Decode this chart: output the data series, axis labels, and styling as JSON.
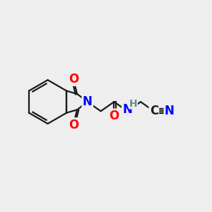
{
  "bg_color": "#eeeeee",
  "bond_color": "#1a1a1a",
  "atom_colors": {
    "O": "#ff0000",
    "N": "#0000ff",
    "C": "#1a1a1a",
    "H": "#5a9090"
  },
  "font_size_atoms": 12,
  "font_size_h": 10,
  "line_width": 1.6
}
